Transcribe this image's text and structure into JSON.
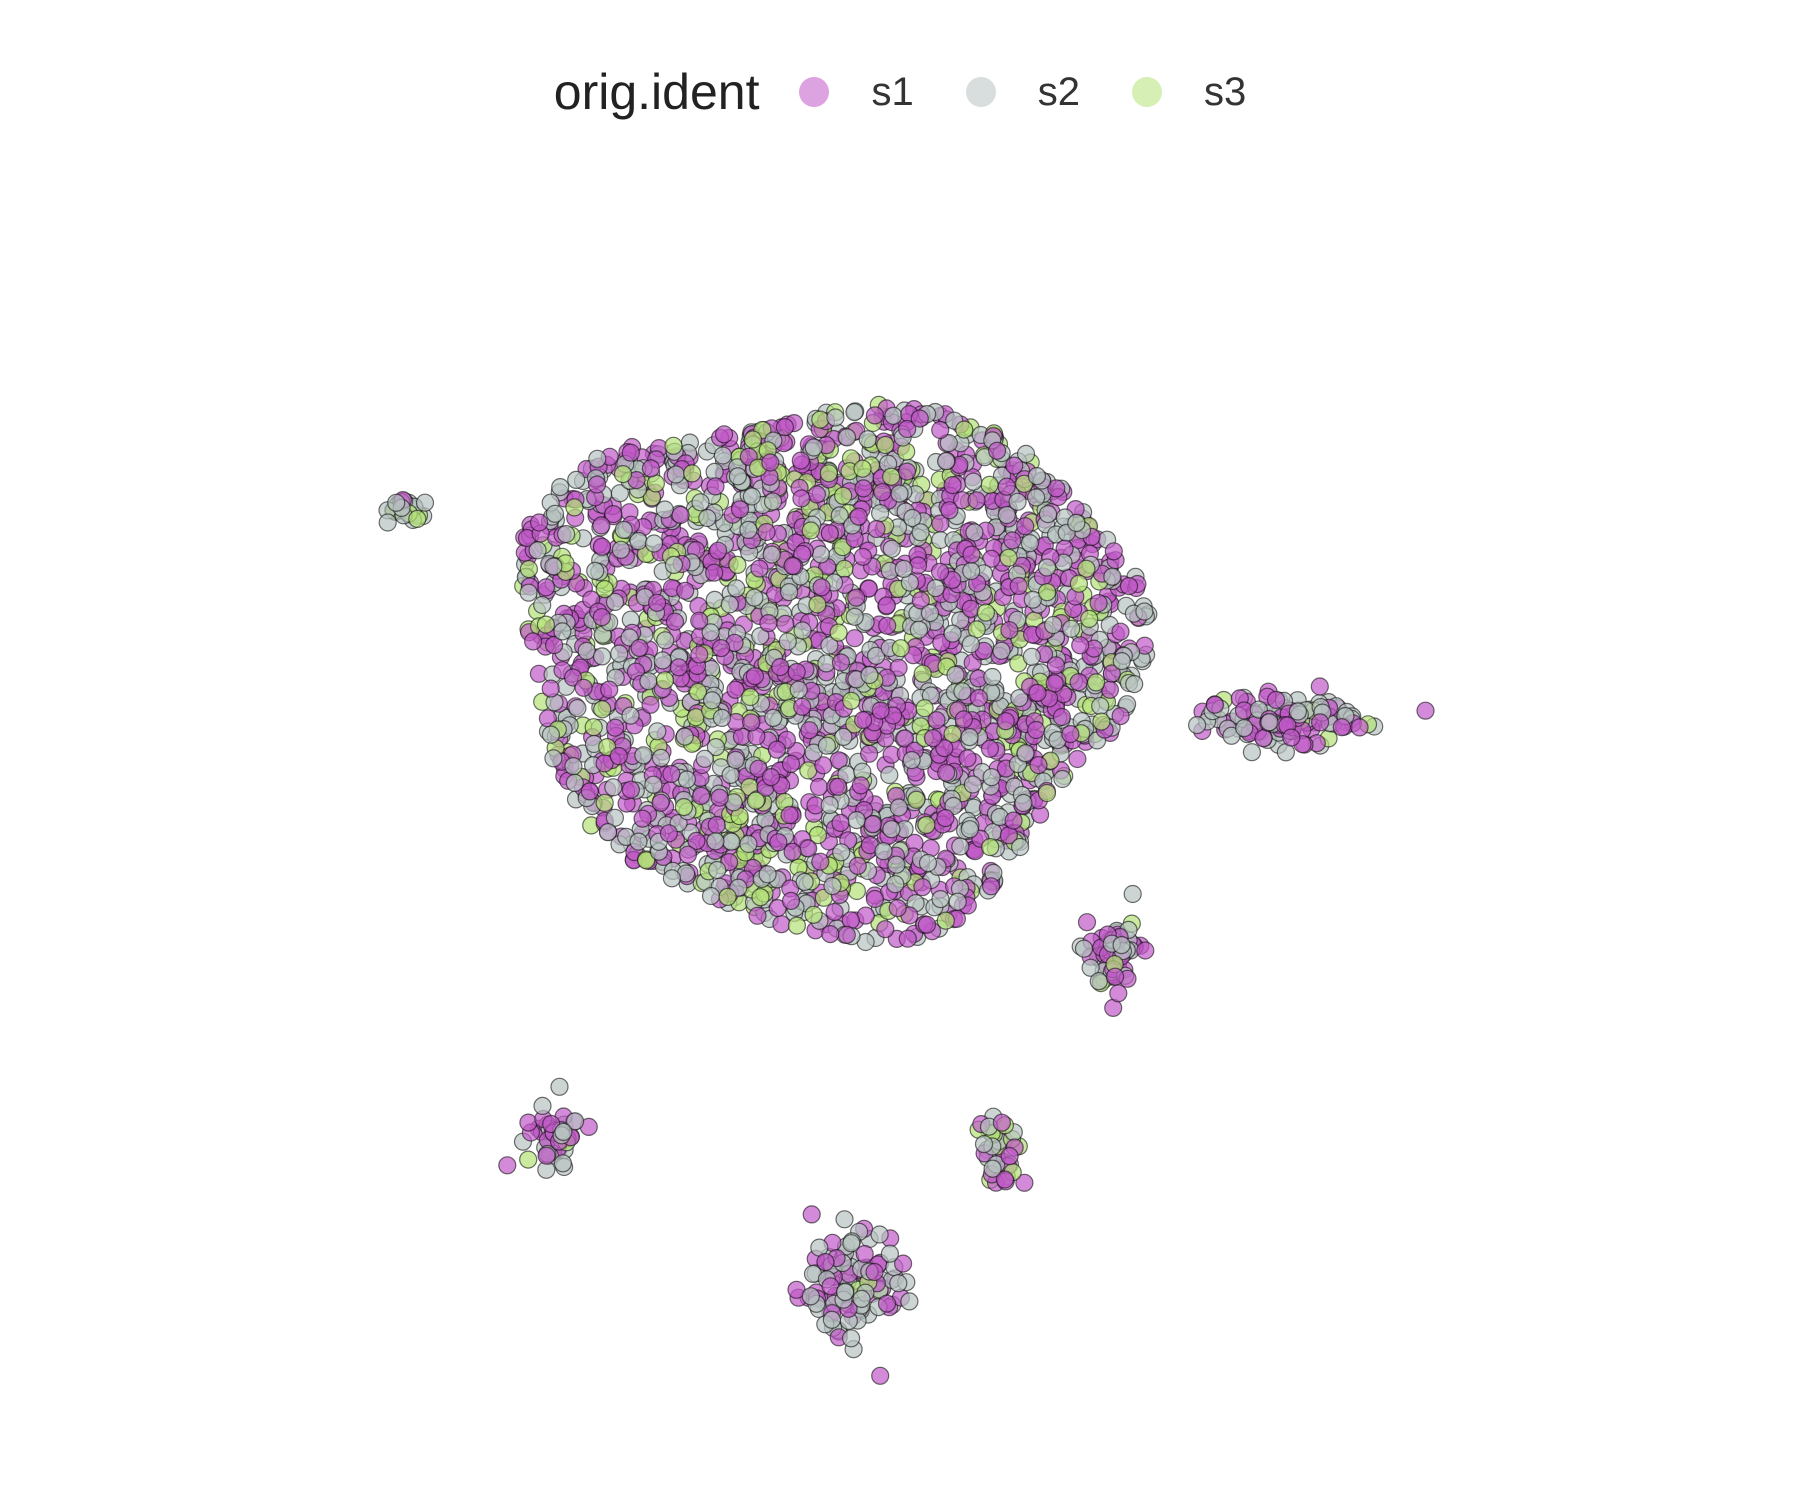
{
  "chart_data": {
    "type": "scatter",
    "legend": {
      "title": "orig.ident",
      "position": "top",
      "items": [
        {
          "label": "s1",
          "color": "#C158C8"
        },
        {
          "label": "s2",
          "color": "#B8C3C2"
        },
        {
          "label": "s3",
          "color": "#B4E276"
        }
      ]
    },
    "axes_visible": false,
    "grid": false,
    "xlim": [
      -10,
      10
    ],
    "ylim": [
      -10,
      10
    ],
    "point_alpha": 0.7,
    "point_outline": "#111111",
    "clusters": [
      {
        "name": "main",
        "cx": -1.0,
        "cy": 2.0,
        "rx": 4.3,
        "ry": 4.4,
        "n": 2600,
        "mix": [
          0.45,
          0.4,
          0.15
        ]
      },
      {
        "name": "right",
        "cx": 5.3,
        "cy": 1.0,
        "rx": 0.95,
        "ry": 0.35,
        "n": 140,
        "mix": [
          0.4,
          0.55,
          0.05
        ]
      },
      {
        "name": "left",
        "cx": -6.9,
        "cy": 4.5,
        "rx": 0.22,
        "ry": 0.22,
        "n": 30,
        "mix": [
          0.1,
          0.8,
          0.1
        ]
      },
      {
        "name": "bottom-right",
        "cx": 3.0,
        "cy": -2.9,
        "rx": 0.35,
        "ry": 0.55,
        "n": 70,
        "mix": [
          0.5,
          0.4,
          0.1
        ]
      },
      {
        "name": "bottom-left",
        "cx": -4.8,
        "cy": -6.0,
        "rx": 0.35,
        "ry": 0.45,
        "n": 50,
        "mix": [
          0.5,
          0.4,
          0.1
        ]
      },
      {
        "name": "bottom-mid",
        "cx": 1.4,
        "cy": -6.2,
        "rx": 0.25,
        "ry": 0.45,
        "n": 40,
        "mix": [
          0.35,
          0.35,
          0.3
        ]
      },
      {
        "name": "bottom",
        "cx": -0.7,
        "cy": -8.4,
        "rx": 0.7,
        "ry": 0.9,
        "n": 110,
        "mix": [
          0.4,
          0.55,
          0.05
        ]
      }
    ]
  }
}
